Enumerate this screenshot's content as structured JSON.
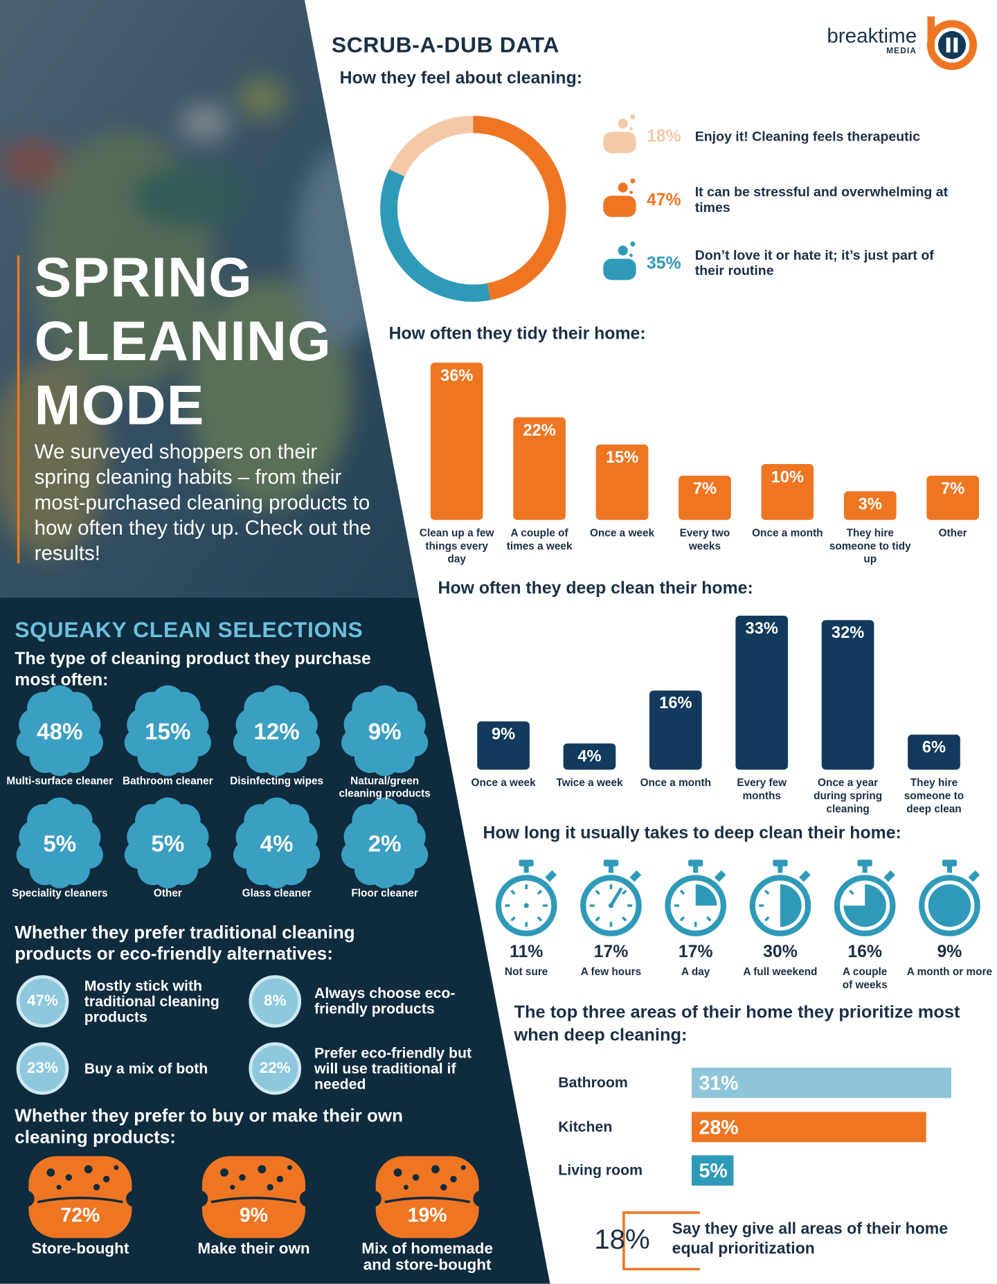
{
  "logo": {
    "name": "breaktime",
    "sub": "MEDIA"
  },
  "header": {
    "title": "SPRING CLEANING MODE",
    "intro": "We surveyed shoppers on their spring cleaning habits – from their most-purchased cleaning products to how often they tidy up. Check out the results!"
  },
  "data_heading": "SCRUB-A-DUB DATA",
  "selections": {
    "heading": "SQUEAKY CLEAN SELECTIONS",
    "subheading": "The type of cleaning product they purchase most often:",
    "items": [
      {
        "value": "48%",
        "label": "Multi-surface cleaner"
      },
      {
        "value": "15%",
        "label": "Bathroom cleaner"
      },
      {
        "value": "12%",
        "label": "Disinfecting wipes"
      },
      {
        "value": "9%",
        "label": "Natural/green cleaning products"
      },
      {
        "value": "5%",
        "label": "Speciality cleaners"
      },
      {
        "value": "5%",
        "label": "Other"
      },
      {
        "value": "4%",
        "label": "Glass cleaner"
      },
      {
        "value": "2%",
        "label": "Floor cleaner"
      }
    ]
  },
  "eco": {
    "heading": "Whether they prefer traditional cleaning products or eco-friendly alternatives:",
    "items": [
      {
        "value": "47%",
        "label": "Mostly stick with traditional cleaning products"
      },
      {
        "value": "8%",
        "label": "Always choose eco-friendly products"
      },
      {
        "value": "23%",
        "label": "Buy a mix of both"
      },
      {
        "value": "22%",
        "label": "Prefer eco-friendly but will use traditional if needed"
      }
    ]
  },
  "make": {
    "heading": "Whether they prefer to buy or make their own cleaning products:",
    "items": [
      {
        "value": "72%",
        "label": "Store-bought"
      },
      {
        "value": "9%",
        "label": "Make their own"
      },
      {
        "value": "19%",
        "label": "Mix of homemade and store-bought"
      }
    ]
  },
  "duration": {
    "heading": "How long it usually takes to deep clean their home:",
    "items": [
      {
        "value": "11%",
        "label": "Not sure"
      },
      {
        "value": "17%",
        "label": "A few hours"
      },
      {
        "value": "17%",
        "label": "A day"
      },
      {
        "value": "30%",
        "label": "A full weekend"
      },
      {
        "value": "16%",
        "label": "A couple of weeks"
      },
      {
        "value": "9%",
        "label": "A month or more"
      }
    ]
  },
  "equal": {
    "value": "18%",
    "label": "Say they give all areas of their home equal prioritization"
  },
  "chart_data": [
    {
      "type": "donut",
      "title": "How they feel about cleaning:",
      "categories": [
        "Enjoy it! Cleaning feels therapeutic",
        "It can be stressful and overwhelming at times",
        "Don’t love it or hate it; it’s just part of their routine"
      ],
      "values": [
        18,
        47,
        35
      ],
      "value_labels": [
        "18%",
        "47%",
        "35%"
      ],
      "colors": [
        "#f4c9a8",
        "#ee7623",
        "#2f9ab8"
      ]
    },
    {
      "type": "bar",
      "title": "How often they tidy their home:",
      "categories": [
        "Clean up a few things every day",
        "A couple of times a week",
        "Once a week",
        "Every two weeks",
        "Once a month",
        "They hire someone to tidy up",
        "Other"
      ],
      "values": [
        36,
        22,
        15,
        7,
        10,
        3,
        7
      ],
      "value_labels": [
        "36%",
        "22%",
        "15%",
        "7%",
        "10%",
        "3%",
        "7%"
      ],
      "color": "#ee7623"
    },
    {
      "type": "bar",
      "title": "How often they deep clean their home:",
      "categories": [
        "Once a week",
        "Twice a week",
        "Once a month",
        "Every few months",
        "Once a year during spring cleaning",
        "They hire someone to deep clean"
      ],
      "values": [
        9,
        4,
        16,
        33,
        32,
        6
      ],
      "value_labels": [
        "9%",
        "4%",
        "16%",
        "33%",
        "32%",
        "6%"
      ],
      "color": "#123a5c"
    },
    {
      "type": "hbar",
      "title": "The top three areas of their home they prioritize most when deep cleaning:",
      "categories": [
        "Bathroom",
        "Kitchen",
        "Living room"
      ],
      "values": [
        31,
        28,
        5
      ],
      "value_labels": [
        "31%",
        "28%",
        "5%"
      ],
      "colors": [
        "#8ec5d8",
        "#ee7623",
        "#2f9ab8"
      ]
    }
  ]
}
